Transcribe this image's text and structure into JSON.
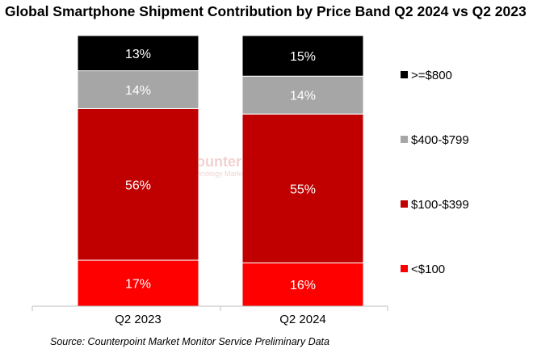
{
  "title": "Global Smartphone Shipment Contribution by Price Band Q2 2024 vs Q2 2023",
  "source": "Source: Counterpoint Market Monitor Service Preliminary Data",
  "watermark": {
    "name": "Counterpoint",
    "sub": "Technology Market Research"
  },
  "chart_data": {
    "type": "bar",
    "stacked": true,
    "title": "Global Smartphone Shipment Contribution by Price Band Q2 2024 vs Q2 2023",
    "categories": [
      "Q2 2023",
      "Q2 2024"
    ],
    "series": [
      {
        "name": "<$100",
        "values": [
          17,
          16
        ],
        "labels": [
          "17%",
          "16%"
        ],
        "color": "#ff0000"
      },
      {
        "name": "$100-$399",
        "values": [
          56,
          55
        ],
        "labels": [
          "56%",
          "55%"
        ],
        "color": "#c00000"
      },
      {
        "name": "$400-$799",
        "values": [
          14,
          14
        ],
        "labels": [
          "14%",
          "14%"
        ],
        "color": "#a6a6a6"
      },
      {
        "name": ">=$800",
        "values": [
          13,
          15
        ],
        "labels": [
          "13%",
          "15%"
        ],
        "color": "#000000"
      }
    ],
    "legend_order": [
      ">=$800",
      "$400-$799",
      "$100-$399",
      "<$100"
    ],
    "legend_position": "right",
    "ylim": [
      0,
      100
    ],
    "grid": false
  }
}
